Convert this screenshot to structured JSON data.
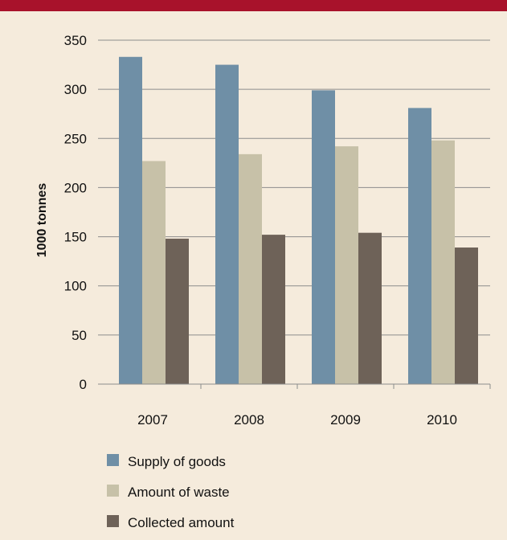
{
  "chart_data": {
    "type": "bar",
    "categories": [
      "2007",
      "2008",
      "2009",
      "2010"
    ],
    "series": [
      {
        "name": "Supply of goods",
        "values": [
          333,
          325,
          299,
          281
        ],
        "color": "#6f8fa6"
      },
      {
        "name": "Amount of waste",
        "values": [
          227,
          234,
          242,
          248
        ],
        "color": "#c7c1a8"
      },
      {
        "name": "Collected amount",
        "values": [
          148,
          152,
          154,
          139
        ],
        "color": "#6e6258"
      }
    ],
    "ylabel": "1000 tonnes",
    "xlabel": "",
    "ylim": [
      0,
      350
    ],
    "yticks": [
      0,
      50,
      100,
      150,
      200,
      250,
      300,
      350
    ],
    "grid": true,
    "legend_position": "bottom"
  },
  "colors": {
    "background": "#f5ebdc",
    "top_rule": "#a8122b",
    "grid": "#8c8c8c"
  }
}
